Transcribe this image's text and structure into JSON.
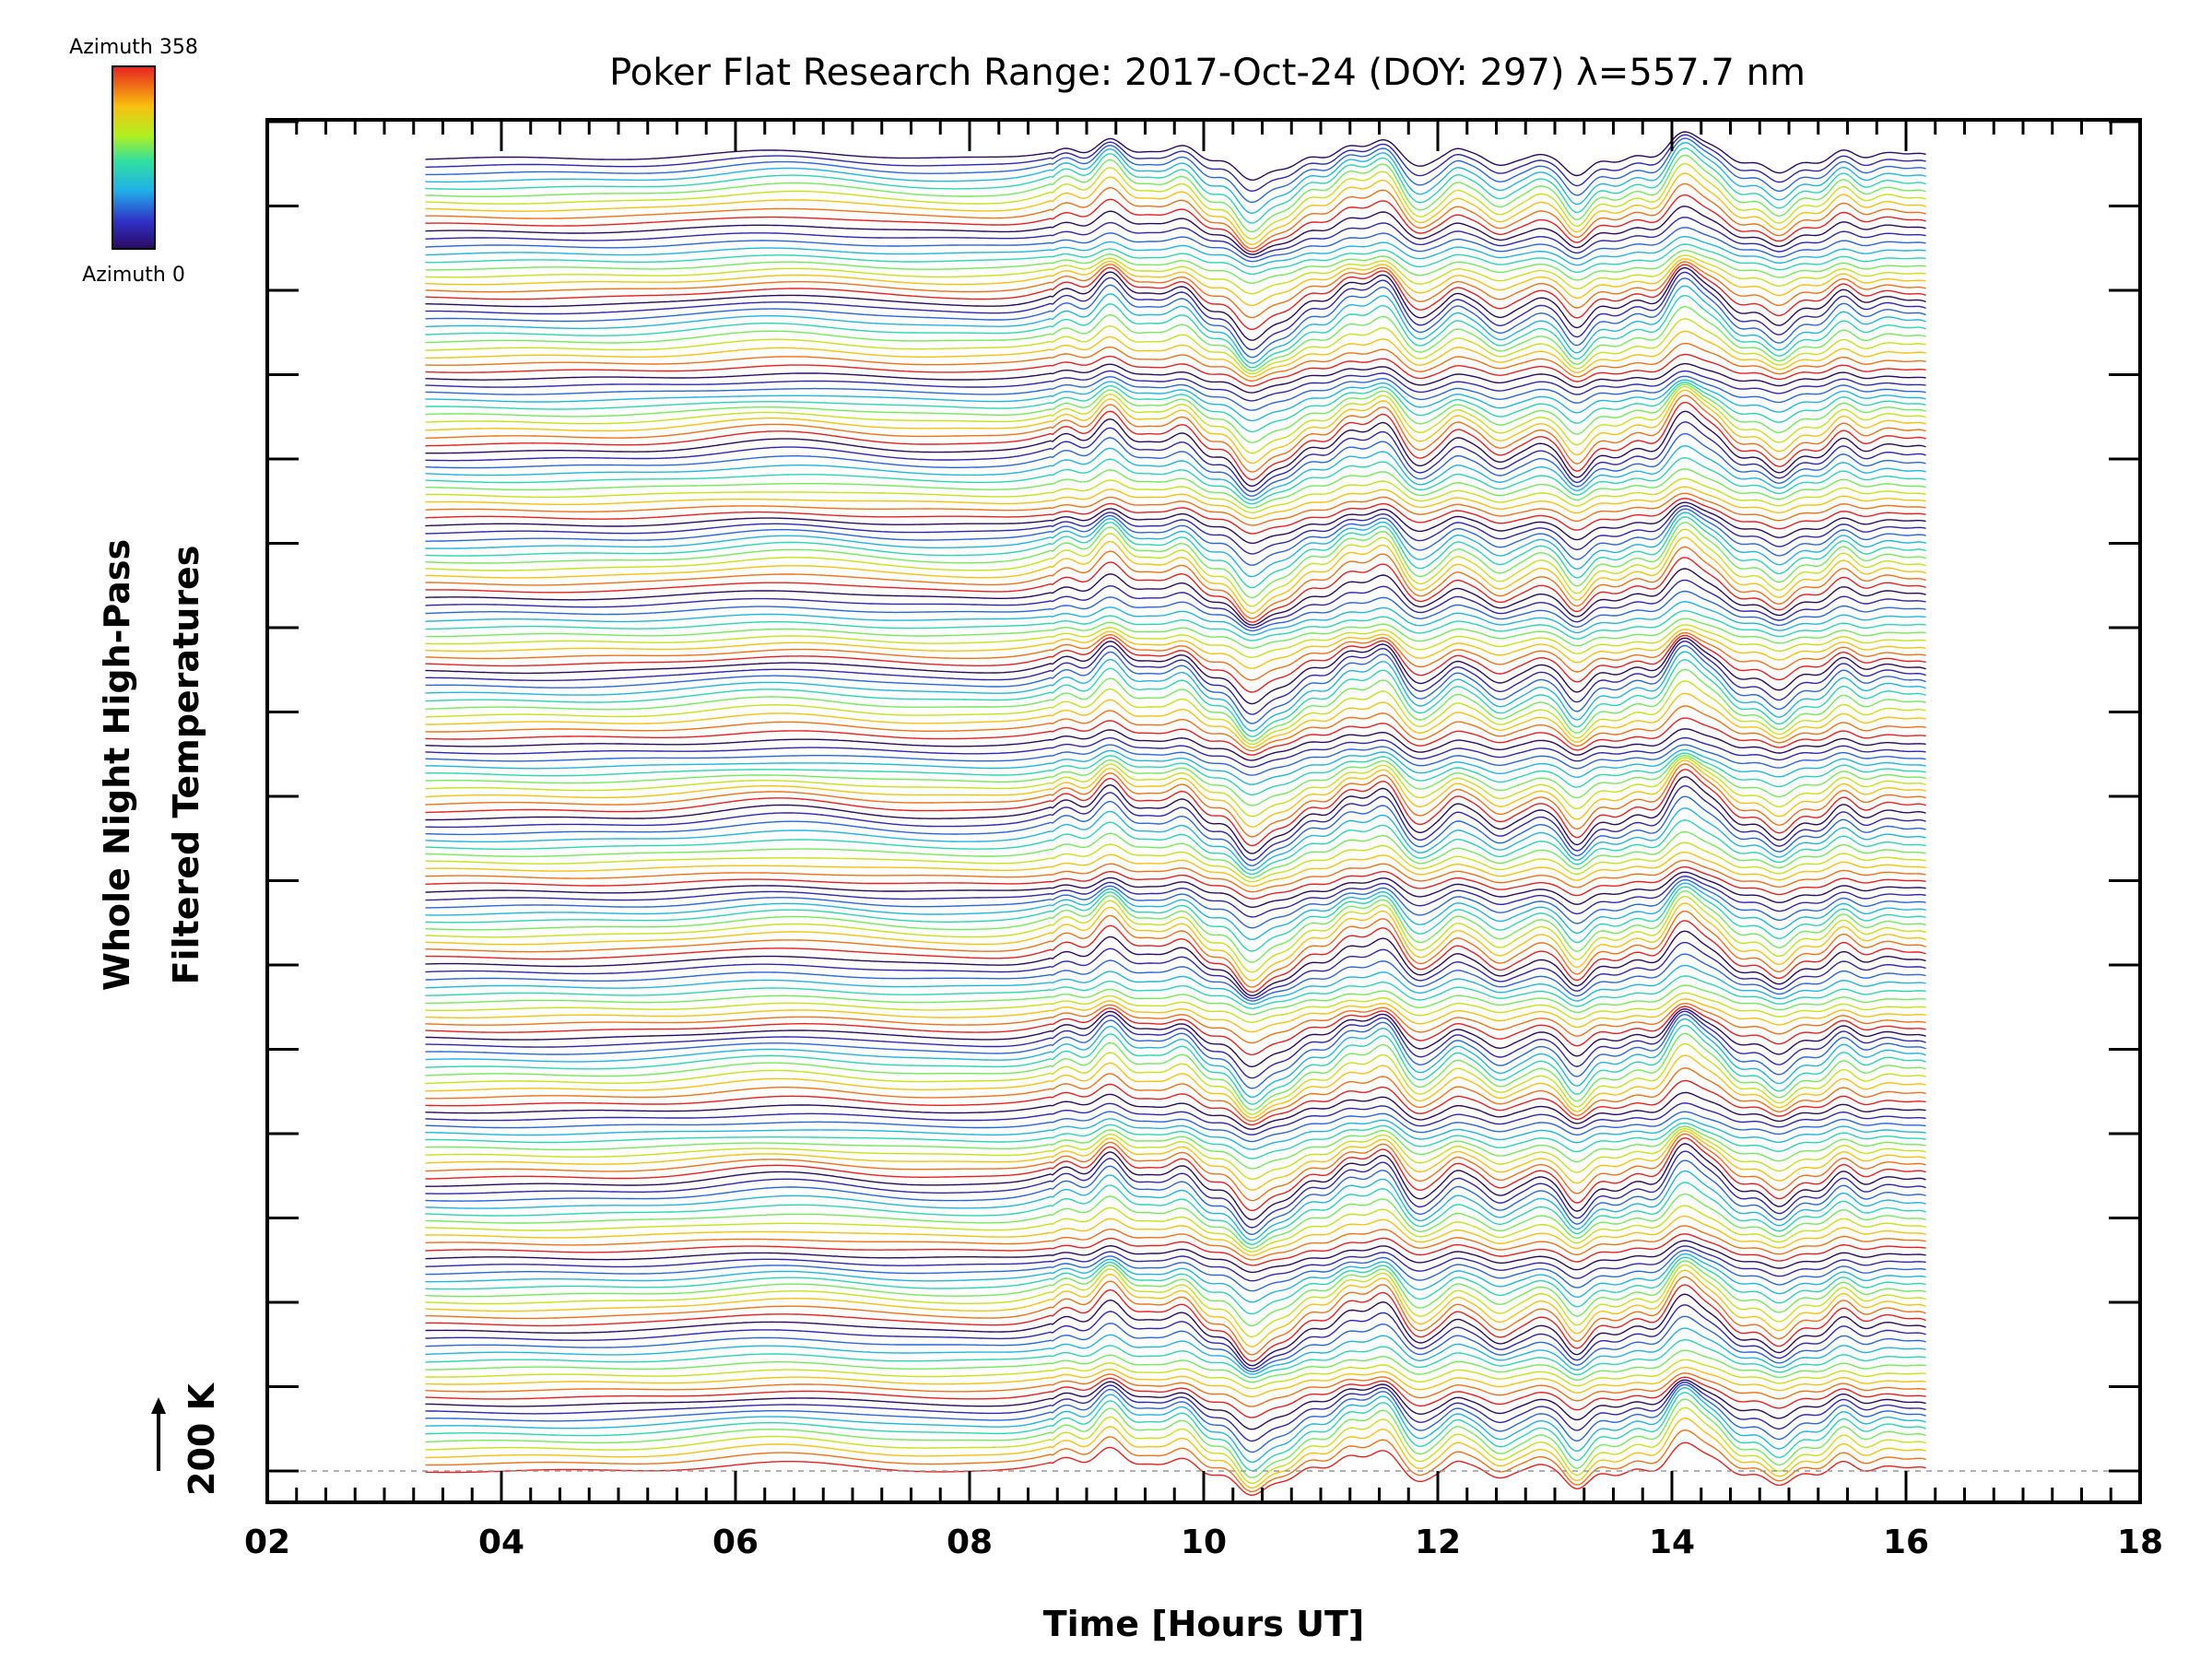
{
  "chart_data": {
    "type": "line",
    "title": "Poker Flat Research Range: 2017-Oct-24 (DOY: 297) λ=557.7 nm",
    "xlabel": "Time [Hours UT]",
    "ylabel_line1": "Whole Night High-Pass",
    "ylabel_line2": "Filtered Temperatures",
    "scale_bar_label": "200 K",
    "xlim": [
      2,
      18
    ],
    "x_ticks": [
      "02",
      "04",
      "06",
      "08",
      "10",
      "12",
      "14",
      "16",
      "18"
    ],
    "x_tick_values": [
      2,
      4,
      6,
      8,
      10,
      12,
      14,
      16,
      18
    ],
    "data_time_range": [
      3.35,
      16.17
    ],
    "colorbar": {
      "top_label": "Azimuth 358",
      "bottom_label": "Azimuth 0",
      "min": 0,
      "max": 358,
      "colormap": "rainbow"
    },
    "series_count": 180,
    "stacking": "stacked offset traces, one per azimuth, cycling through azimuth colors"
  }
}
